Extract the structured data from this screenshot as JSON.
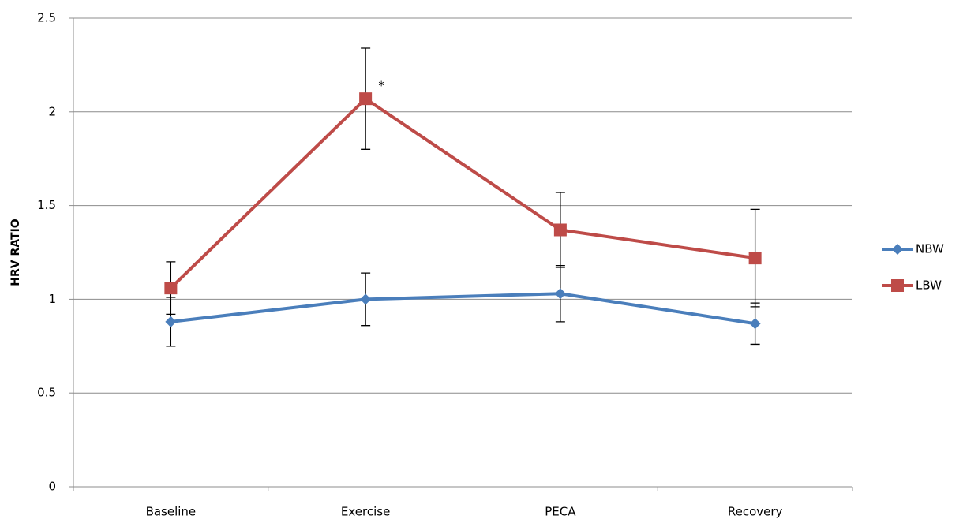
{
  "chart_data": {
    "type": "line",
    "y_label": "HRV RATIO",
    "categories": [
      "Baseline",
      "Exercise",
      "PECA",
      "Recovery"
    ],
    "series": [
      {
        "name": "NBW",
        "color": "#4a7ebb",
        "marker": "diamond",
        "values": [
          0.88,
          1.0,
          1.03,
          0.87
        ],
        "errors": [
          0.13,
          0.14,
          0.15,
          0.11
        ]
      },
      {
        "name": "LBW",
        "color": "#be4b48",
        "marker": "square",
        "values": [
          1.06,
          2.07,
          1.37,
          1.22
        ],
        "errors": [
          0.14,
          0.27,
          0.2,
          0.26
        ]
      }
    ],
    "annotations": [
      "*"
    ],
    "ylim": [
      0,
      2.5
    ],
    "yticks": [
      0,
      0.5,
      1,
      1.5,
      2,
      2.5
    ],
    "grid": true,
    "legend": "right"
  }
}
